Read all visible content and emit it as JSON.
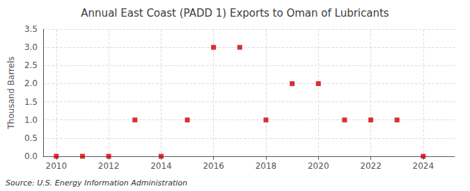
{
  "chart_data": {
    "type": "scatter",
    "title": "Annual East Coast (PADD 1) Exports to Oman of Lubricants",
    "ylabel": "Thousand Barrels",
    "annotations": [
      "Source: U.S. Energy Information Administration"
    ],
    "x": [
      2010,
      2011,
      2012,
      2013,
      2014,
      2015,
      2016,
      2017,
      2018,
      2019,
      2020,
      2021,
      2022,
      2023,
      2024
    ],
    "values": [
      0,
      0,
      0,
      1.0,
      0,
      1.0,
      3.0,
      3.0,
      1.0,
      2.0,
      2.0,
      1.0,
      1.0,
      1.0,
      0
    ],
    "color": "#cc0000",
    "marker": "square",
    "xlim": [
      2009.5,
      2025.2
    ],
    "xticks": [
      2010,
      2012,
      2014,
      2016,
      2018,
      2020,
      2022,
      2024
    ],
    "ylim": [
      0,
      3.5
    ],
    "yticks": [
      {
        "value": 0,
        "label": "0.0"
      },
      0.5,
      {
        "value": 1,
        "label": "1.0"
      },
      1.5,
      {
        "value": 2,
        "label": "2.0"
      },
      2.5,
      {
        "value": 3,
        "label": "3.0"
      },
      3.5
    ],
    "grid": true
  }
}
